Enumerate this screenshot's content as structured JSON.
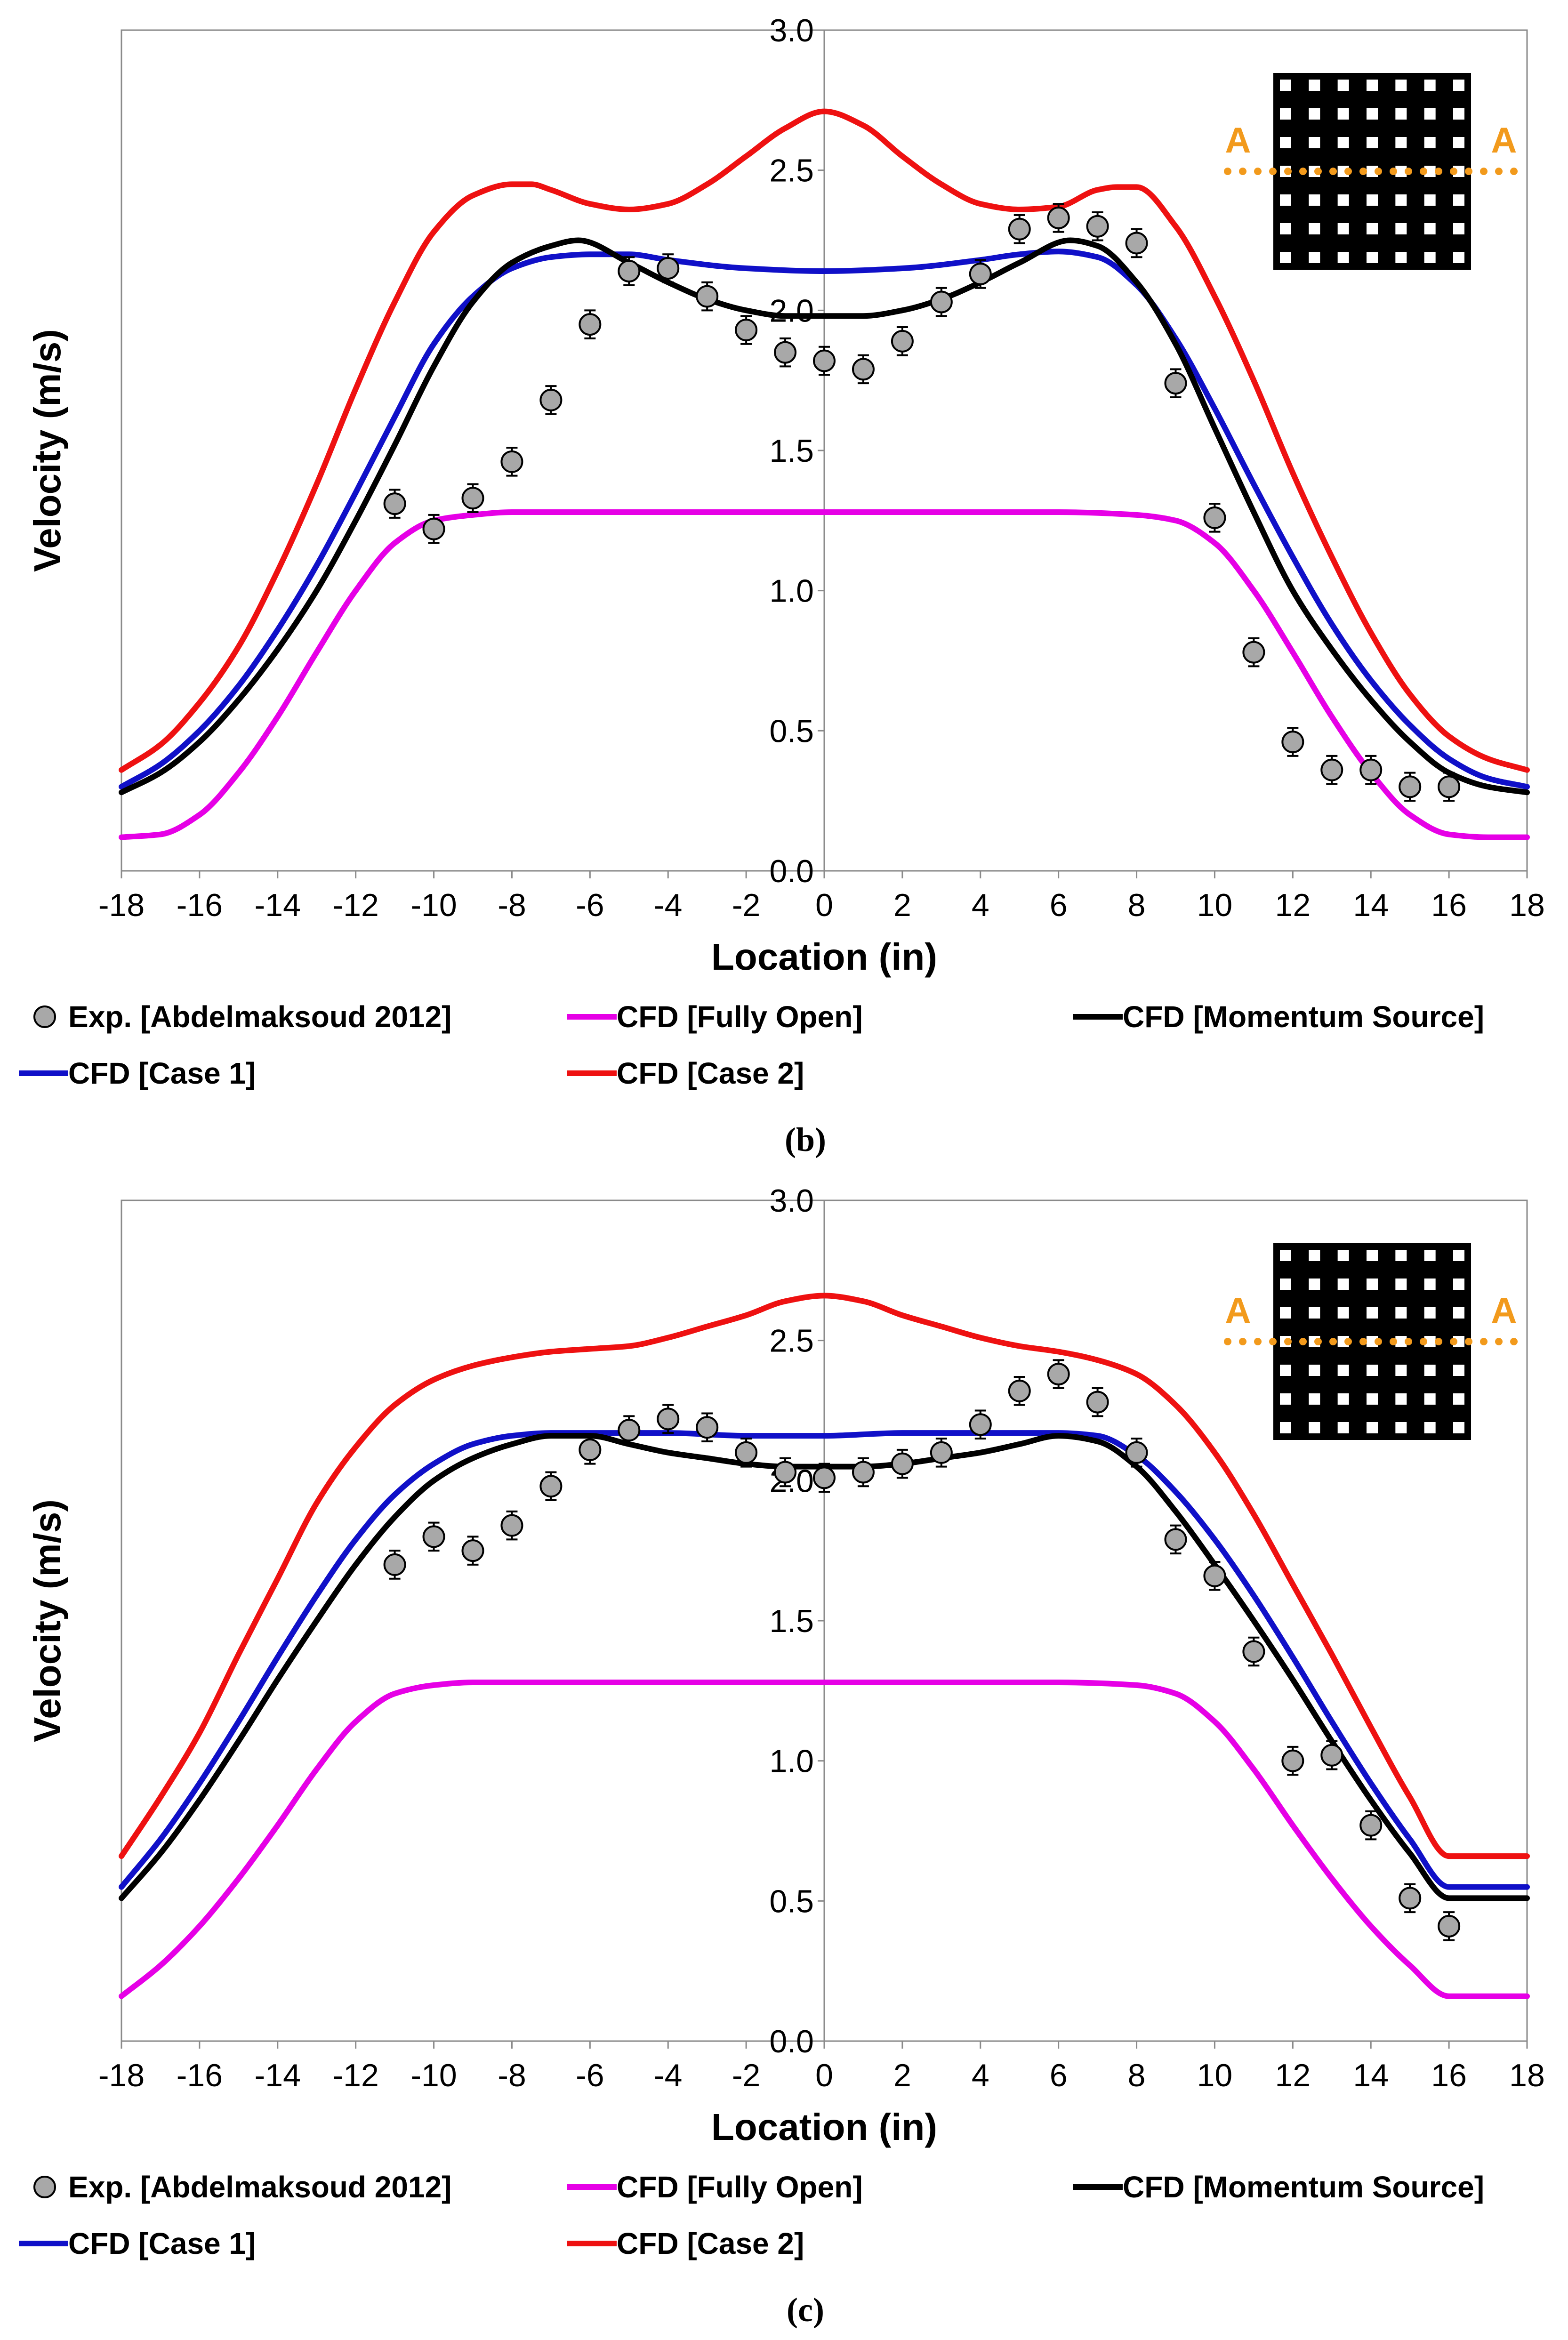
{
  "colors": {
    "exp": "#a8a8a8",
    "fully_open": "#e600e6",
    "momentum": "#000000",
    "case1": "#1010c8",
    "case2": "#ee1111",
    "inset_line": "#f29a1c"
  },
  "chart_data": [
    {
      "type": "line",
      "panel_caption": "(b)",
      "xlabel": "Location (in)",
      "ylabel": "Velocity (m/s)",
      "xlim": [
        -18,
        18
      ],
      "ylim": [
        0,
        3
      ],
      "xticks": [
        -18,
        -16,
        -14,
        -12,
        -10,
        -8,
        -6,
        -4,
        -2,
        0,
        2,
        4,
        6,
        8,
        10,
        12,
        14,
        16,
        18
      ],
      "yticks": [
        "0.0",
        "0.5",
        "1.0",
        "1.5",
        "2.0",
        "2.5",
        "3.0"
      ],
      "inset": {
        "left_label": "A",
        "right_label": "A"
      },
      "experiment": {
        "name": "Exp. [Abdelmaksoud 2012]",
        "x": [
          -11,
          -10,
          -9,
          -8,
          -7,
          -6,
          -5,
          -4,
          -3,
          -2,
          -1,
          0,
          1,
          2,
          3,
          4,
          5,
          6,
          7,
          8,
          9,
          10,
          11,
          12,
          13,
          14,
          15,
          16
        ],
        "y": [
          1.31,
          1.22,
          1.33,
          1.46,
          1.68,
          1.95,
          2.14,
          2.15,
          2.05,
          1.93,
          1.85,
          1.82,
          1.79,
          1.89,
          2.03,
          2.13,
          2.29,
          2.33,
          2.3,
          2.24,
          1.74,
          1.26,
          0.78,
          0.46,
          0.36,
          0.36,
          0.3,
          0.3
        ],
        "err": 0.05
      },
      "series": [
        {
          "name": "CFD [Fully Open]",
          "key": "fully_open",
          "x": [
            -18,
            -17,
            -16,
            -15,
            -14,
            -13,
            -12,
            -11,
            -10,
            -9,
            -8,
            -6,
            -4,
            -2,
            0,
            2,
            4,
            6,
            8,
            9,
            10,
            11,
            12,
            13,
            14,
            15,
            16,
            17,
            18
          ],
          "y": [
            0.12,
            0.13,
            0.2,
            0.35,
            0.55,
            0.78,
            1.0,
            1.17,
            1.25,
            1.27,
            1.28,
            1.28,
            1.28,
            1.28,
            1.28,
            1.28,
            1.28,
            1.28,
            1.27,
            1.25,
            1.17,
            1.0,
            0.78,
            0.55,
            0.35,
            0.2,
            0.13,
            0.12,
            0.12
          ]
        },
        {
          "name": "CFD [Momentum Source]",
          "key": "momentum",
          "x": [
            -18,
            -17,
            -16,
            -15,
            -14,
            -13,
            -12,
            -11,
            -10,
            -9,
            -8,
            -7,
            -6.3,
            -5,
            -4,
            -3,
            -2,
            -1,
            0,
            1,
            2,
            3,
            4,
            5,
            6.3,
            7,
            8,
            9,
            10,
            11,
            12,
            13,
            14,
            15,
            16,
            17,
            18
          ],
          "y": [
            0.28,
            0.35,
            0.46,
            0.61,
            0.79,
            1.0,
            1.25,
            1.52,
            1.8,
            2.03,
            2.17,
            2.23,
            2.25,
            2.17,
            2.1,
            2.04,
            2.0,
            1.98,
            1.98,
            1.98,
            2.0,
            2.04,
            2.1,
            2.17,
            2.25,
            2.23,
            2.1,
            1.88,
            1.58,
            1.28,
            1.0,
            0.79,
            0.61,
            0.46,
            0.35,
            0.3,
            0.28
          ]
        },
        {
          "name": "CFD [Case 1]",
          "key": "case1",
          "x": [
            -18,
            -17,
            -16,
            -15,
            -14,
            -13,
            -12,
            -11,
            -10,
            -9,
            -8,
            -7,
            -6,
            -5,
            -4,
            -2,
            0,
            2,
            4,
            5,
            6,
            7,
            8,
            9,
            10,
            11,
            12,
            13,
            14,
            15,
            16,
            17,
            18
          ],
          "y": [
            0.3,
            0.38,
            0.5,
            0.66,
            0.86,
            1.09,
            1.35,
            1.62,
            1.88,
            2.05,
            2.15,
            2.19,
            2.2,
            2.2,
            2.18,
            2.15,
            2.14,
            2.15,
            2.18,
            2.2,
            2.21,
            2.19,
            2.09,
            1.9,
            1.65,
            1.38,
            1.12,
            0.88,
            0.68,
            0.52,
            0.4,
            0.33,
            0.3
          ]
        },
        {
          "name": "CFD [Case 2]",
          "key": "case2",
          "x": [
            -18,
            -17,
            -16,
            -15,
            -14,
            -13,
            -12,
            -11,
            -10,
            -9,
            -8,
            -7.5,
            -7,
            -6,
            -5,
            -4,
            -3,
            -2,
            -1,
            0,
            1,
            2,
            3,
            4,
            5,
            6,
            7,
            7.5,
            8,
            9,
            10,
            11,
            12,
            13,
            14,
            15,
            16,
            17,
            18
          ],
          "y": [
            0.36,
            0.45,
            0.6,
            0.8,
            1.07,
            1.38,
            1.72,
            2.03,
            2.28,
            2.41,
            2.45,
            2.45,
            2.43,
            2.38,
            2.36,
            2.38,
            2.45,
            2.55,
            2.65,
            2.71,
            2.66,
            2.55,
            2.45,
            2.38,
            2.36,
            2.37,
            2.43,
            2.44,
            2.44,
            2.3,
            2.05,
            1.75,
            1.42,
            1.12,
            0.85,
            0.63,
            0.48,
            0.4,
            0.36
          ]
        }
      ]
    },
    {
      "type": "line",
      "panel_caption": "(c)",
      "xlabel": "Location (in)",
      "ylabel": "Velocity (m/s)",
      "xlim": [
        -18,
        18
      ],
      "ylim": [
        0,
        3
      ],
      "xticks": [
        -18,
        -16,
        -14,
        -12,
        -10,
        -8,
        -6,
        -4,
        -2,
        0,
        2,
        4,
        6,
        8,
        10,
        12,
        14,
        16,
        18
      ],
      "yticks": [
        "0.0",
        "0.5",
        "1.0",
        "1.5",
        "2.0",
        "2.5",
        "3.0"
      ],
      "inset": {
        "left_label": "A",
        "right_label": "A"
      },
      "experiment": {
        "name": "Exp. [Abdelmaksoud 2012]",
        "x": [
          -11,
          -10,
          -9,
          -8,
          -7,
          -6,
          -5,
          -4,
          -3,
          -2,
          -1,
          0,
          1,
          2,
          3,
          4,
          5,
          6,
          7,
          8,
          9,
          10,
          11,
          12,
          13,
          14,
          15,
          16
        ],
        "y": [
          1.7,
          1.8,
          1.75,
          1.84,
          1.98,
          2.11,
          2.18,
          2.22,
          2.19,
          2.1,
          2.03,
          2.01,
          2.03,
          2.06,
          2.1,
          2.2,
          2.32,
          2.38,
          2.28,
          2.1,
          1.79,
          1.66,
          1.39,
          1.0,
          1.02,
          0.77,
          0.51,
          0.41
        ],
        "err": 0.05
      },
      "series": [
        {
          "name": "CFD [Fully Open]",
          "key": "fully_open",
          "x": [
            -18,
            -17,
            -16,
            -15,
            -14,
            -13,
            -12,
            -11,
            -10,
            -9,
            -8,
            -6,
            -4,
            -2,
            0,
            2,
            4,
            6,
            8,
            9,
            10,
            11,
            12,
            13,
            14,
            15,
            16,
            17,
            18
          ],
          "y": [
            0.16,
            0.27,
            0.41,
            0.58,
            0.77,
            0.97,
            1.14,
            1.24,
            1.27,
            1.28,
            1.28,
            1.28,
            1.28,
            1.28,
            1.28,
            1.28,
            1.28,
            1.28,
            1.27,
            1.24,
            1.14,
            0.97,
            0.77,
            0.58,
            0.41,
            0.27,
            0.16,
            0.16,
            0.16
          ]
        },
        {
          "name": "CFD [Momentum Source]",
          "key": "momentum",
          "x": [
            -18,
            -17,
            -16,
            -15,
            -14,
            -13,
            -12,
            -11,
            -10,
            -9,
            -8,
            -7,
            -6,
            -5,
            -4,
            -3,
            -2,
            -1,
            0,
            1,
            2,
            3,
            4,
            5,
            6,
            7,
            8,
            9,
            10,
            11,
            12,
            13,
            14,
            15,
            16,
            17,
            18
          ],
          "y": [
            0.51,
            0.67,
            0.86,
            1.07,
            1.29,
            1.5,
            1.7,
            1.87,
            2.0,
            2.08,
            2.13,
            2.16,
            2.16,
            2.13,
            2.1,
            2.08,
            2.06,
            2.05,
            2.05,
            2.05,
            2.06,
            2.08,
            2.1,
            2.13,
            2.16,
            2.14,
            2.05,
            1.89,
            1.7,
            1.5,
            1.29,
            1.07,
            0.86,
            0.67,
            0.51,
            0.51,
            0.51
          ]
        },
        {
          "name": "CFD [Case 1]",
          "key": "case1",
          "x": [
            -18,
            -17,
            -16,
            -15,
            -14,
            -13,
            -12,
            -11,
            -10,
            -9,
            -8,
            -7,
            -6,
            -5,
            -4,
            -2,
            0,
            2,
            4,
            6,
            7,
            8,
            9,
            10,
            11,
            12,
            13,
            14,
            15,
            16,
            17,
            18
          ],
          "y": [
            0.55,
            0.72,
            0.92,
            1.14,
            1.37,
            1.59,
            1.79,
            1.95,
            2.06,
            2.13,
            2.16,
            2.17,
            2.17,
            2.17,
            2.17,
            2.16,
            2.16,
            2.17,
            2.17,
            2.17,
            2.16,
            2.09,
            1.96,
            1.79,
            1.59,
            1.37,
            1.14,
            0.92,
            0.72,
            0.55,
            0.55,
            0.55
          ]
        },
        {
          "name": "CFD [Case 2]",
          "key": "case2",
          "x": [
            -18,
            -17,
            -16,
            -15,
            -14,
            -13,
            -12,
            -11,
            -10,
            -9,
            -8,
            -7,
            -6,
            -5,
            -4,
            -3,
            -2,
            -1,
            0,
            1,
            2,
            3,
            4,
            5,
            6,
            7,
            8,
            9,
            10,
            11,
            12,
            13,
            14,
            15,
            16,
            17,
            18
          ],
          "y": [
            0.66,
            0.87,
            1.1,
            1.38,
            1.65,
            1.92,
            2.12,
            2.27,
            2.36,
            2.41,
            2.44,
            2.46,
            2.47,
            2.48,
            2.51,
            2.55,
            2.59,
            2.64,
            2.66,
            2.64,
            2.59,
            2.55,
            2.51,
            2.48,
            2.46,
            2.43,
            2.38,
            2.27,
            2.1,
            1.88,
            1.63,
            1.38,
            1.12,
            0.87,
            0.66,
            0.66,
            0.66
          ]
        }
      ]
    }
  ]
}
